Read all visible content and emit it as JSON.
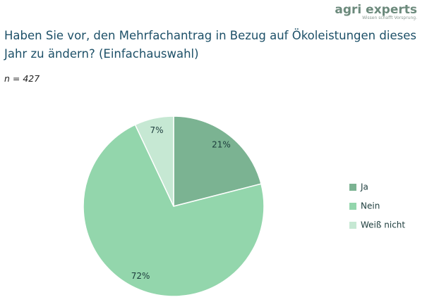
{
  "logo": {
    "name": "agri experts",
    "tagline": "Wissen schafft Vorsprung."
  },
  "chart_data": {
    "type": "pie",
    "title": "Haben Sie vor, den Mehrfachantrag in Bezug auf Ökoleistungen dieses Jahr zu ändern? (Einfachauswahl)",
    "subtitle": "n = 427",
    "categories": [
      "Ja",
      "Nein",
      "Weiß nicht"
    ],
    "values": [
      21,
      72,
      7
    ],
    "value_labels": [
      "21%",
      "72%",
      "7%"
    ],
    "colors": [
      "#7bb392",
      "#93d6ac",
      "#c6e8d3"
    ],
    "legend": "right"
  }
}
